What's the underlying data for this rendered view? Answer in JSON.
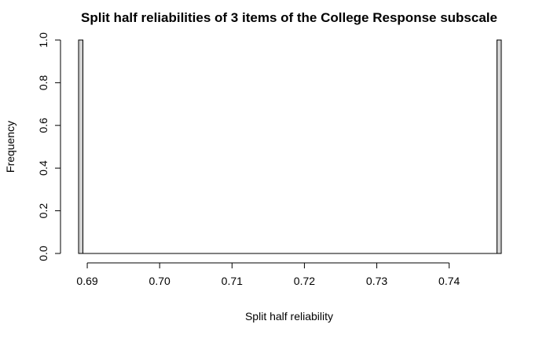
{
  "chart_data": {
    "type": "bar",
    "title": "Split half reliabilities of 3 items of the College Response subscale",
    "xlabel": "Split half reliability",
    "ylabel": "Frequency",
    "xlim": [
      0.6888,
      0.7472
    ],
    "ylim": [
      0,
      1
    ],
    "x_ticks": [
      0.69,
      0.7,
      0.71,
      0.72,
      0.73,
      0.74
    ],
    "x_tick_labels": [
      "0.69",
      "0.70",
      "0.71",
      "0.72",
      "0.73",
      "0.74"
    ],
    "y_ticks": [
      0.0,
      0.2,
      0.4,
      0.6,
      0.8,
      1.0
    ],
    "y_tick_labels": [
      "0.0",
      "0.2",
      "0.4",
      "0.6",
      "0.8",
      "1.0"
    ],
    "bins": [
      {
        "x0": 0.6888,
        "x1": 0.6894,
        "count": 1
      },
      {
        "x0": 0.6894,
        "x1": 0.7466,
        "count": 0
      },
      {
        "x0": 0.7466,
        "x1": 0.7472,
        "count": 1
      }
    ],
    "bar_color": "#d3d3d3",
    "grid": false,
    "legend": "none"
  }
}
